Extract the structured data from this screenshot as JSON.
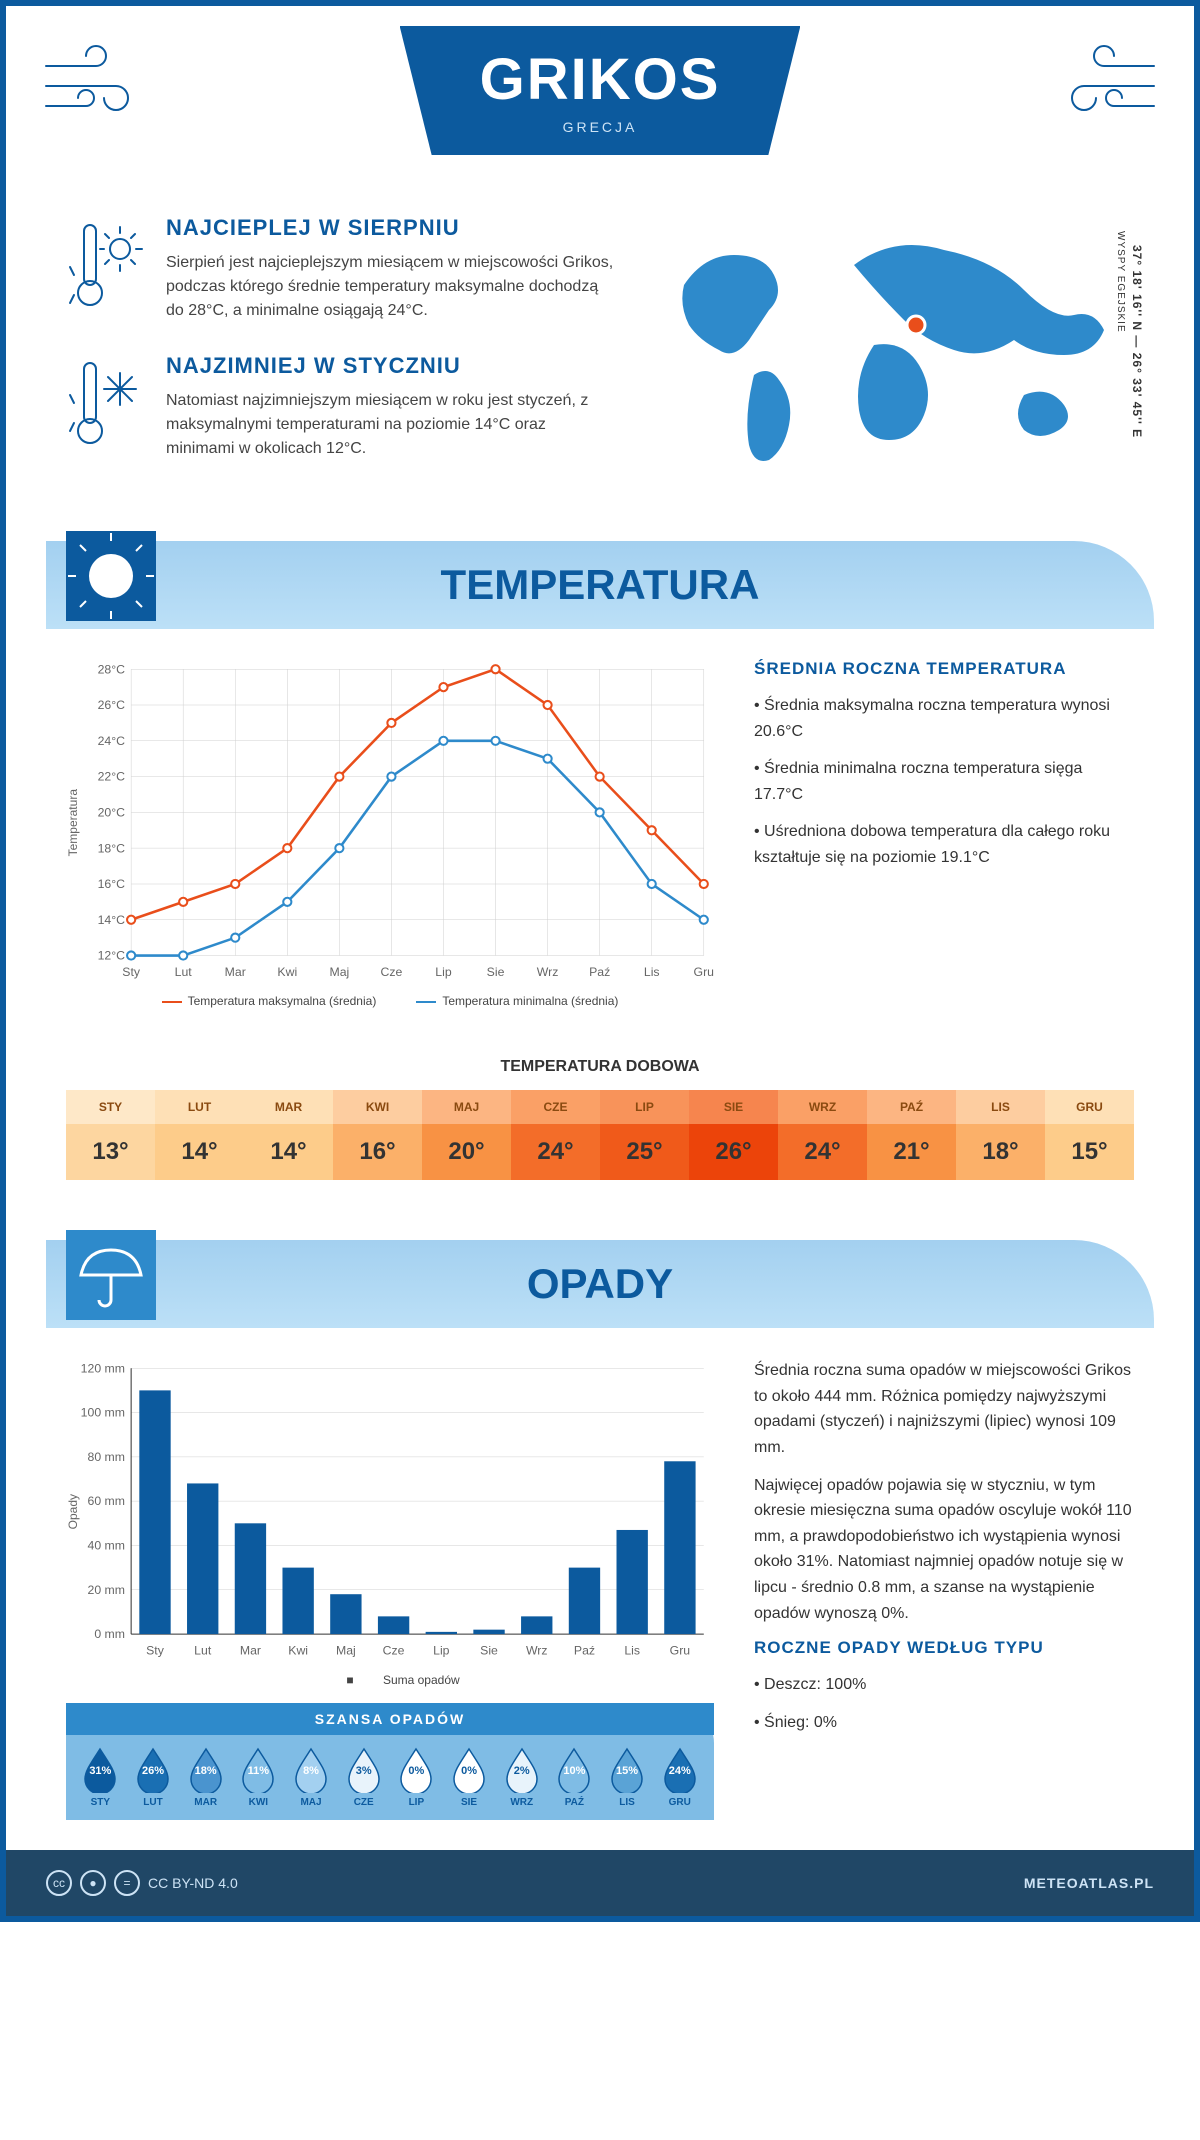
{
  "header": {
    "city": "GRIKOS",
    "country": "GRECJA"
  },
  "facts": {
    "hot": {
      "title": "NAJCIEPLEJ W SIERPNIU",
      "text": "Sierpień jest najcieplejszym miesiącem w miejscowości Grikos, podczas którego średnie temperatury maksymalne dochodzą do 28°C, a minimalne osiągają 24°C."
    },
    "cold": {
      "title": "NAJZIMNIEJ W STYCZNIU",
      "text": "Natomiast najzimniejszym miesiącem w roku jest styczeń, z maksymalnymi temperaturami na poziomie 14°C oraz minimami w okolicach 12°C."
    }
  },
  "map": {
    "coords": "37° 18' 16'' N — 26° 33' 45'' E",
    "region": "WYSPY EGEJSKIE",
    "marker_color": "#e94e1b"
  },
  "temperature": {
    "section_title": "TEMPERATURA",
    "side_title": "ŚREDNIA ROCZNA TEMPERATURA",
    "bullets": [
      "Średnia maksymalna roczna temperatura wynosi 20.6°C",
      "Średnia minimalna roczna temperatura sięga 17.7°C",
      "Uśredniona dobowa temperatura dla całego roku kształtuje się na poziomie 19.1°C"
    ],
    "chart": {
      "months": [
        "Sty",
        "Lut",
        "Mar",
        "Kwi",
        "Maj",
        "Cze",
        "Lip",
        "Sie",
        "Wrz",
        "Paź",
        "Lis",
        "Gru"
      ],
      "max": [
        14,
        15,
        16,
        18,
        22,
        25,
        27,
        28,
        26,
        22,
        19,
        16
      ],
      "min": [
        12,
        12,
        13,
        15,
        18,
        22,
        24,
        24,
        23,
        20,
        16,
        14
      ],
      "ylim": [
        12,
        28
      ],
      "ytick_step": 2,
      "yunit": "°C",
      "ylabel": "Temperatura",
      "legend_max": "Temperatura maksymalna (średnia)",
      "legend_min": "Temperatura minimalna (średnia)",
      "max_color": "#e94e1b",
      "min_color": "#2e8acb",
      "grid_color": "#d0d0d0"
    },
    "daily": {
      "title": "TEMPERATURA DOBOWA",
      "months": [
        "STY",
        "LUT",
        "MAR",
        "KWI",
        "MAJ",
        "CZE",
        "LIP",
        "SIE",
        "WRZ",
        "PAŹ",
        "LIS",
        "GRU"
      ],
      "values": [
        "13°",
        "14°",
        "14°",
        "16°",
        "20°",
        "24°",
        "25°",
        "26°",
        "24°",
        "21°",
        "18°",
        "15°"
      ],
      "colors": [
        "#fdd6a0",
        "#fdcc8a",
        "#fdcc8a",
        "#fbb069",
        "#f89244",
        "#f36d29",
        "#f05a1a",
        "#ec440a",
        "#f36d29",
        "#f89244",
        "#fbb069",
        "#fdcc8a"
      ],
      "header_colors": [
        "#fee8c8",
        "#fee0b6",
        "#fee0b6",
        "#fdcda0",
        "#fcb582",
        "#faa066",
        "#f8935a",
        "#f6854e",
        "#faa066",
        "#fcb582",
        "#fdcda0",
        "#fee0b6"
      ]
    }
  },
  "precip": {
    "section_title": "OPADY",
    "para1": "Średnia roczna suma opadów w miejscowości Grikos to około 444 mm. Różnica pomiędzy najwyższymi opadami (styczeń) i najniższymi (lipiec) wynosi 109 mm.",
    "para2": "Najwięcej opadów pojawia się w styczniu, w tym okresie miesięczna suma opadów oscyluje wokół 110 mm, a prawdopodobieństwo ich wystąpienia wynosi około 31%. Natomiast najmniej opadów notuje się w lipcu - średnio 0.8 mm, a szanse na wystąpienie opadów wynoszą 0%.",
    "type_title": "ROCZNE OPADY WEDŁUG TYPU",
    "types": [
      "Deszcz: 100%",
      "Śnieg: 0%"
    ],
    "chart": {
      "months": [
        "Sty",
        "Lut",
        "Mar",
        "Kwi",
        "Maj",
        "Cze",
        "Lip",
        "Sie",
        "Wrz",
        "Paź",
        "Lis",
        "Gru"
      ],
      "values": [
        110,
        68,
        50,
        30,
        18,
        8,
        1,
        2,
        8,
        30,
        47,
        78
      ],
      "ylim": [
        0,
        120
      ],
      "ytick_step": 20,
      "yunit": " mm",
      "ylabel": "Opady",
      "legend": "Suma opadów",
      "bar_color": "#0c5a9e"
    },
    "chance": {
      "title": "SZANSA OPADÓW",
      "months": [
        "STY",
        "LUT",
        "MAR",
        "KWI",
        "MAJ",
        "CZE",
        "LIP",
        "SIE",
        "WRZ",
        "PAŹ",
        "LIS",
        "GRU"
      ],
      "values": [
        "31%",
        "26%",
        "18%",
        "11%",
        "8%",
        "3%",
        "0%",
        "0%",
        "2%",
        "10%",
        "15%",
        "24%"
      ],
      "fills": [
        "#0c5a9e",
        "#1a6fb3",
        "#4a94cf",
        "#7fbce5",
        "#a3d0f0",
        "#e8f3fb",
        "#ffffff",
        "#ffffff",
        "#e8f3fb",
        "#7fbce5",
        "#5aa3d6",
        "#1a6fb3"
      ],
      "text_colors": [
        "#fff",
        "#fff",
        "#fff",
        "#fff",
        "#fff",
        "#0c5a9e",
        "#0c5a9e",
        "#0c5a9e",
        "#0c5a9e",
        "#fff",
        "#fff",
        "#fff"
      ]
    }
  },
  "footer": {
    "license": "CC BY-ND 4.0",
    "site": "METEOATLAS.PL"
  }
}
